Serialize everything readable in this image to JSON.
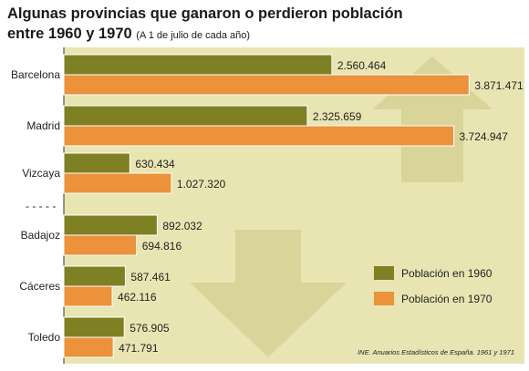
{
  "title": {
    "line1": "Algunas provincias que ganaron o perdieron población",
    "line2": "entre 1960 y 1970",
    "subtitle": "(A 1 de julio de cada año)"
  },
  "source": "INE. Anuarios Estadísticos de España. 1961 y 1971",
  "separator_label": "- - - - -",
  "colors": {
    "background": "#e8e5b2",
    "bar_1960": "#7f8024",
    "bar_1970": "#eb923a",
    "arrows": "#d9d49a",
    "bar_outline": "#ffffff"
  },
  "chart_data": {
    "type": "bar",
    "orientation": "horizontal",
    "categories": [
      "Barcelona",
      "Madrid",
      "Vizcaya",
      "Badajoz",
      "Cáceres",
      "Toledo"
    ],
    "series": [
      {
        "name": "Población en 1960",
        "values": [
          2560464,
          2325659,
          630434,
          892032,
          587461,
          576905
        ],
        "labels": [
          "2.560.464",
          "2.325.659",
          "630.434",
          "892.032",
          "587.461",
          "576.905"
        ]
      },
      {
        "name": "Población en 1970",
        "values": [
          3871471,
          3724947,
          1027320,
          694816,
          462116,
          471791
        ],
        "labels": [
          "3.871.471",
          "3.724.947",
          "1.027.320",
          "694.816",
          "462.116",
          "471.791"
        ]
      }
    ],
    "xlim": [
      0,
      4400000
    ],
    "legend_position": "bottom-right",
    "grid": false,
    "decoration": [
      "up-arrow (groups that gained)",
      "down-arrow (groups that lost)"
    ]
  }
}
